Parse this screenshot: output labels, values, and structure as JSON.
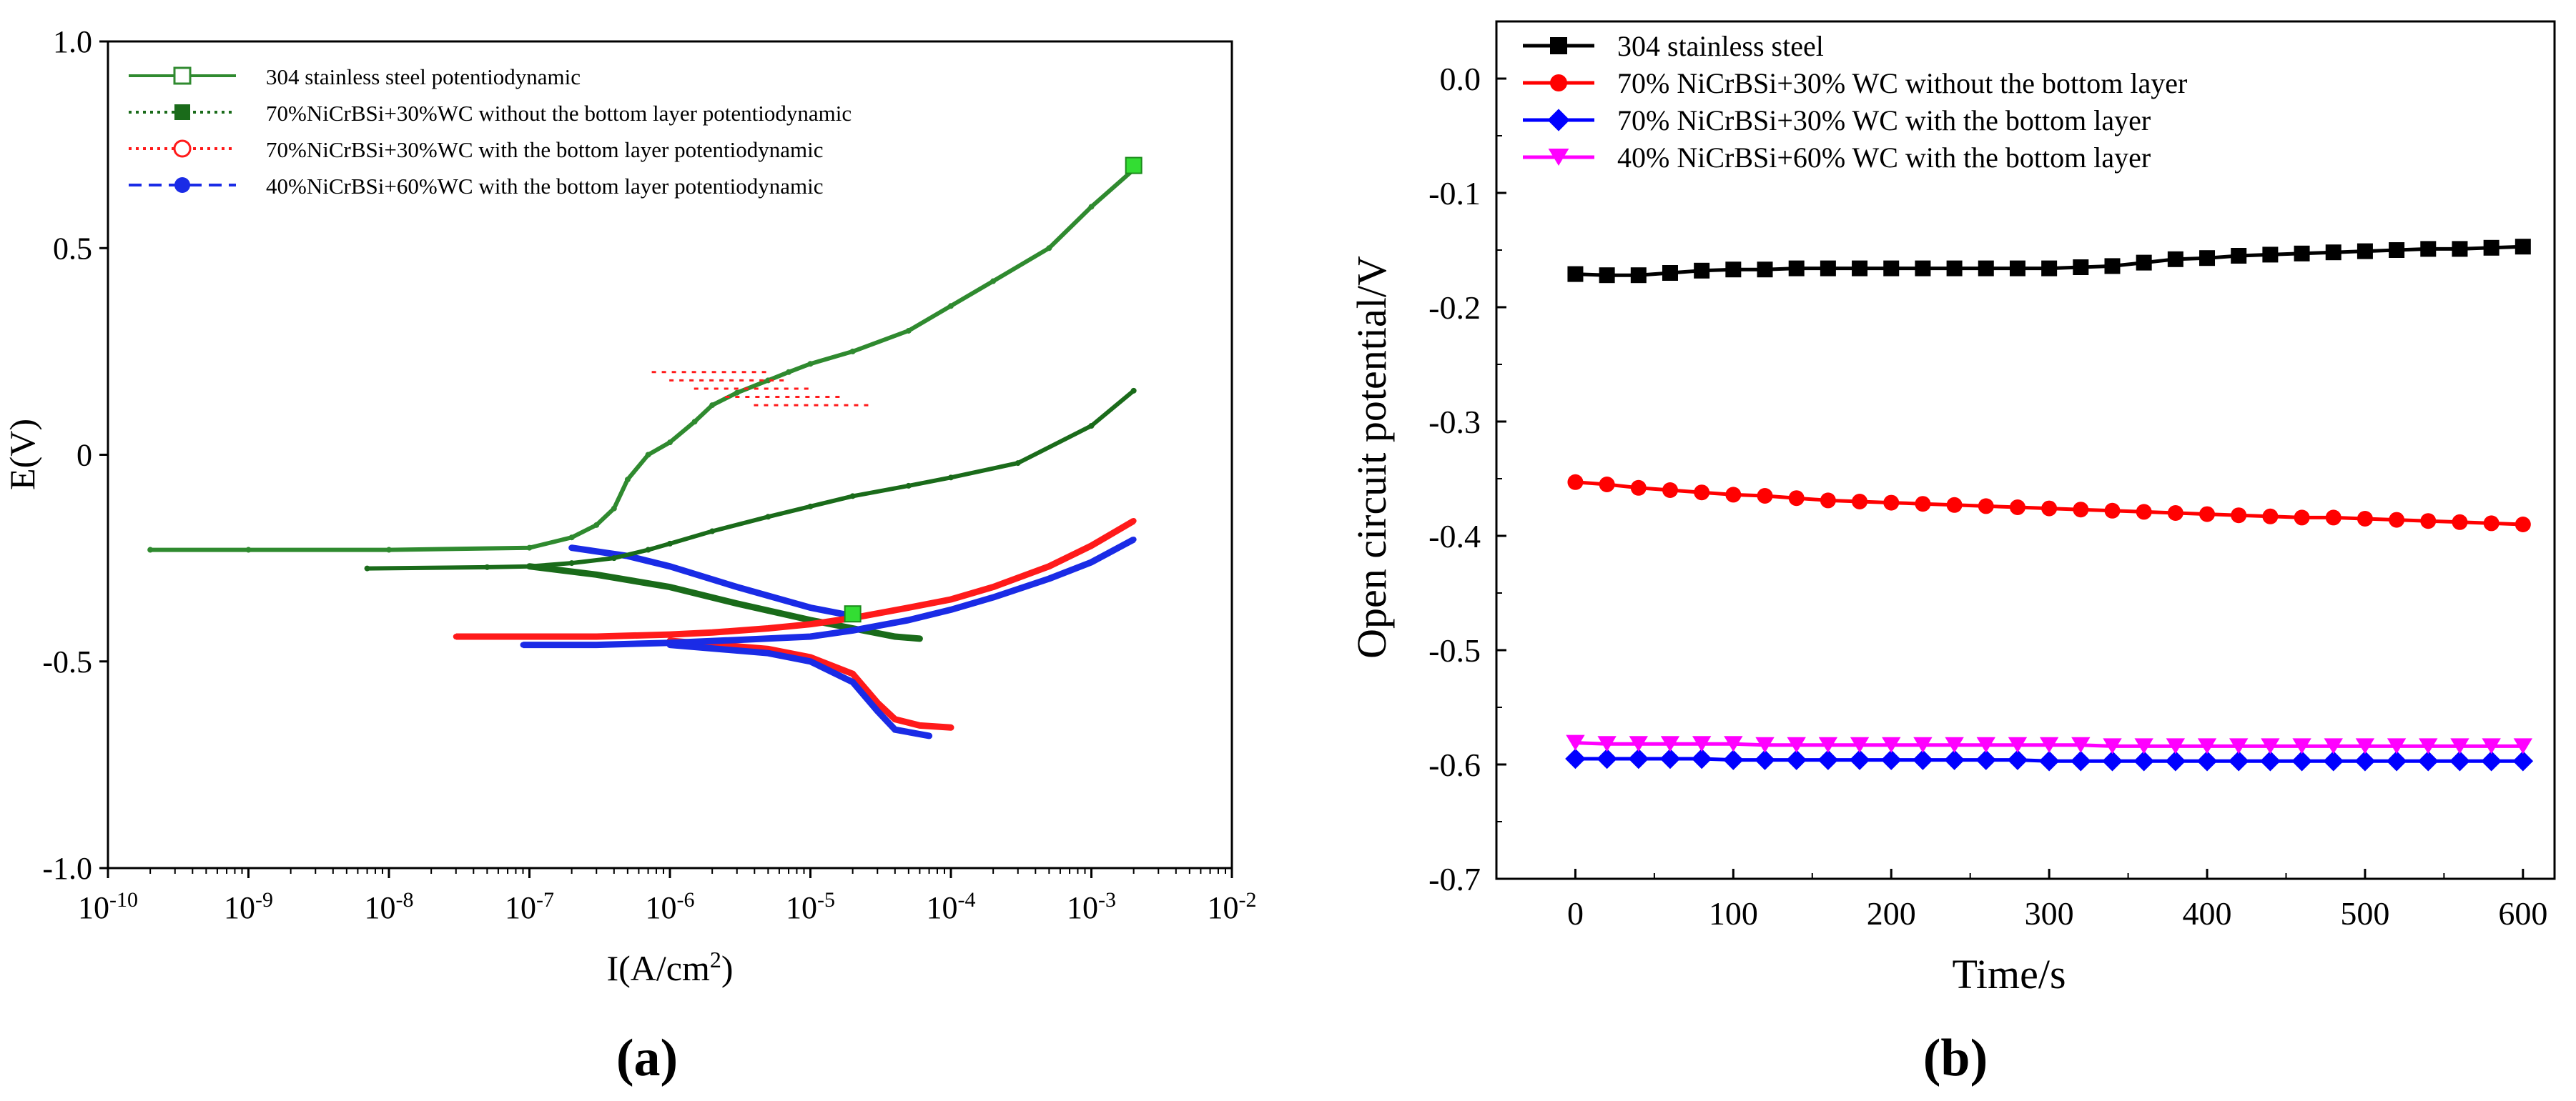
{
  "panels": {
    "a_label": "(a)",
    "b_label": "(b)"
  },
  "chart_data": [
    {
      "type": "line",
      "title": "",
      "xlabel": "I(A/cm²)",
      "ylabel": "E(V)",
      "xscale": "log",
      "xlim": [
        1e-10,
        0.01
      ],
      "ylim": [
        -1.0,
        1.0
      ],
      "x_ticks": [
        {
          "base": "10",
          "exp": "-10"
        },
        {
          "base": "10",
          "exp": "-9"
        },
        {
          "base": "10",
          "exp": "-8"
        },
        {
          "base": "10",
          "exp": "-7"
        },
        {
          "base": "10",
          "exp": "-6"
        },
        {
          "base": "10",
          "exp": "-5"
        },
        {
          "base": "10",
          "exp": "-4"
        },
        {
          "base": "10",
          "exp": "-3"
        },
        {
          "base": "10",
          "exp": "-2"
        }
      ],
      "y_ticks": [
        "1.0",
        "0.5",
        "0",
        "-0.5",
        "-1.0"
      ],
      "y_tick_values": [
        1.0,
        0.5,
        0.0,
        -0.5,
        -1.0
      ],
      "legend_position": "top-left",
      "series": [
        {
          "name": "304 stainless steel potentiodynamic",
          "color": "#2f8a2f",
          "style": "solid",
          "marker": "open-square",
          "x": [
            2e-10,
            1e-09,
            1e-08,
            1e-07,
            2e-07,
            3e-07,
            4e-07,
            5e-07,
            7e-07,
            1e-06,
            1.5e-06,
            2e-06,
            3e-06,
            5e-06,
            7e-06,
            1e-05,
            2e-05,
            5e-05,
            0.0001,
            0.0002,
            0.0005,
            0.001,
            0.002
          ],
          "y": [
            -0.23,
            -0.23,
            -0.23,
            -0.225,
            -0.2,
            -0.17,
            -0.13,
            -0.06,
            0.0,
            0.03,
            0.08,
            0.12,
            0.15,
            0.18,
            0.2,
            0.22,
            0.25,
            0.3,
            0.36,
            0.42,
            0.5,
            0.6,
            0.69
          ]
        },
        {
          "name": "70%NiCrBSi+30%WC without the bottom layer potentiodynamic",
          "color": "#1a6b1a",
          "style": "dotted",
          "marker": "filled-square",
          "x": [
            7e-09,
            5e-08,
            1e-07,
            2e-07,
            4e-07,
            7e-07,
            1e-06,
            2e-06,
            5e-06,
            1e-05,
            2e-05,
            5e-05,
            0.0001,
            0.0003,
            0.001,
            0.002
          ],
          "y": [
            -0.275,
            -0.272,
            -0.27,
            -0.262,
            -0.25,
            -0.23,
            -0.215,
            -0.185,
            -0.15,
            -0.125,
            -0.1,
            -0.075,
            -0.055,
            -0.02,
            0.07,
            0.155
          ]
        },
        {
          "name": "70%NiCrBSi+30%WC with the bottom layer potentiodynamic",
          "color": "#ff1a1a",
          "style": "dotted",
          "marker": "open-circle",
          "x": [
            3e-08,
            1e-07,
            3e-07,
            1e-06,
            2e-06,
            5e-06,
            1e-05,
            2e-05,
            5e-05,
            0.0001,
            0.0002,
            0.0005,
            0.001,
            0.002
          ],
          "y": [
            -0.44,
            -0.44,
            -0.44,
            -0.435,
            -0.43,
            -0.42,
            -0.41,
            -0.395,
            -0.37,
            -0.35,
            -0.32,
            -0.27,
            -0.22,
            -0.16
          ]
        },
        {
          "name": "40%NiCrBSi+60%WC with the bottom layer potentiodynamic",
          "color": "#1a2be6",
          "style": "dashed",
          "marker": "filled-circle",
          "x": [
            9e-08,
            3e-07,
            1e-06,
            3e-06,
            1e-05,
            2e-05,
            5e-05,
            0.0001,
            0.0002,
            0.0005,
            0.001,
            0.002
          ],
          "y": [
            -0.46,
            -0.46,
            -0.455,
            -0.448,
            -0.44,
            -0.425,
            -0.4,
            -0.375,
            -0.345,
            -0.3,
            -0.26,
            -0.205
          ]
        }
      ],
      "cathodic_branches": [
        {
          "color": "#1a6b1a",
          "x": [
            1e-07,
            3e-07,
            1e-06,
            3e-06,
            1e-05,
            2e-05,
            4e-05,
            6e-05
          ],
          "y": [
            -0.27,
            -0.29,
            -0.32,
            -0.36,
            -0.4,
            -0.42,
            -0.44,
            -0.445
          ]
        },
        {
          "color": "#1a2be6",
          "x": [
            2e-07,
            5e-07,
            1e-06,
            3e-06,
            1e-05,
            2e-05
          ],
          "y": [
            -0.225,
            -0.245,
            -0.27,
            -0.32,
            -0.37,
            -0.39
          ]
        },
        {
          "color": "#ff1a1a",
          "x": [
            1e-06,
            5e-06,
            1e-05,
            2e-05,
            3e-05,
            4e-05,
            6e-05,
            0.0001
          ],
          "y": [
            -0.45,
            -0.47,
            -0.49,
            -0.53,
            -0.6,
            -0.64,
            -0.655,
            -0.66
          ]
        },
        {
          "color": "#1a2be6",
          "x": [
            1e-06,
            5e-06,
            1e-05,
            2e-05,
            3e-05,
            4e-05,
            7e-05
          ],
          "y": [
            -0.46,
            -0.48,
            -0.5,
            -0.55,
            -0.62,
            -0.665,
            -0.68
          ]
        }
      ],
      "active_region_series": {
        "color": "#ff1a1a",
        "x": [
          1.5e-06,
          2e-06,
          3e-06,
          5e-06,
          8e-06
        ],
        "y": [
          0.2,
          0.18,
          0.16,
          0.14,
          0.12
        ]
      },
      "green_markers": [
        {
          "x": 0.002,
          "y": 0.7
        },
        {
          "x": 2e-05,
          "y": -0.385
        }
      ]
    },
    {
      "type": "line",
      "title": "",
      "xlabel": "Time/s",
      "ylabel": "Open circuit potential/V",
      "xlim": [
        -50,
        620
      ],
      "ylim": [
        -0.7,
        0.05
      ],
      "x_ticks": [
        "0",
        "100",
        "200",
        "300",
        "400",
        "500",
        "600"
      ],
      "x_tick_values": [
        0,
        100,
        200,
        300,
        400,
        500,
        600
      ],
      "y_ticks": [
        "0.0",
        "-0.1",
        "-0.2",
        "-0.3",
        "-0.4",
        "-0.5",
        "-0.6",
        "-0.7"
      ],
      "y_tick_values": [
        0.0,
        -0.1,
        -0.2,
        -0.3,
        -0.4,
        -0.5,
        -0.6,
        -0.7
      ],
      "legend_position": "top-left",
      "x": [
        0,
        20,
        40,
        60,
        80,
        100,
        120,
        140,
        160,
        180,
        200,
        220,
        240,
        260,
        280,
        300,
        320,
        340,
        360,
        380,
        400,
        420,
        440,
        460,
        480,
        500,
        520,
        540,
        560,
        580,
        600
      ],
      "series": [
        {
          "name": "304 stainless steel",
          "color": "#000000",
          "marker": "square",
          "values": [
            -0.171,
            -0.172,
            -0.172,
            -0.17,
            -0.168,
            -0.167,
            -0.167,
            -0.166,
            -0.166,
            -0.166,
            -0.166,
            -0.166,
            -0.166,
            -0.166,
            -0.166,
            -0.166,
            -0.165,
            -0.164,
            -0.161,
            -0.158,
            -0.157,
            -0.155,
            -0.154,
            -0.153,
            -0.152,
            -0.151,
            -0.15,
            -0.149,
            -0.149,
            -0.148,
            -0.147
          ]
        },
        {
          "name": "70% NiCrBSi+30% WC without the bottom layer",
          "color": "#ff0000",
          "marker": "circle",
          "values": [
            -0.353,
            -0.355,
            -0.358,
            -0.36,
            -0.362,
            -0.364,
            -0.365,
            -0.367,
            -0.369,
            -0.37,
            -0.371,
            -0.372,
            -0.373,
            -0.374,
            -0.375,
            -0.376,
            -0.377,
            -0.378,
            -0.379,
            -0.38,
            -0.381,
            -0.382,
            -0.383,
            -0.384,
            -0.384,
            -0.385,
            -0.386,
            -0.387,
            -0.388,
            -0.389,
            -0.39
          ]
        },
        {
          "name": "70% NiCrBSi+30% WC with the bottom layer",
          "color": "#0000ff",
          "marker": "diamond",
          "values": [
            -0.595,
            -0.595,
            -0.595,
            -0.595,
            -0.595,
            -0.596,
            -0.596,
            -0.596,
            -0.596,
            -0.596,
            -0.596,
            -0.596,
            -0.596,
            -0.596,
            -0.596,
            -0.597,
            -0.597,
            -0.597,
            -0.597,
            -0.597,
            -0.597,
            -0.597,
            -0.597,
            -0.597,
            -0.597,
            -0.597,
            -0.597,
            -0.597,
            -0.597,
            -0.597,
            -0.597
          ]
        },
        {
          "name": "40% NiCrBSi+60% WC with the bottom layer",
          "color": "#ff00ff",
          "marker": "triangle-down",
          "values": [
            -0.581,
            -0.582,
            -0.582,
            -0.582,
            -0.582,
            -0.582,
            -0.583,
            -0.583,
            -0.583,
            -0.583,
            -0.583,
            -0.583,
            -0.583,
            -0.583,
            -0.583,
            -0.583,
            -0.583,
            -0.584,
            -0.584,
            -0.584,
            -0.584,
            -0.584,
            -0.584,
            -0.584,
            -0.584,
            -0.584,
            -0.584,
            -0.584,
            -0.584,
            -0.584,
            -0.584
          ]
        }
      ]
    }
  ]
}
